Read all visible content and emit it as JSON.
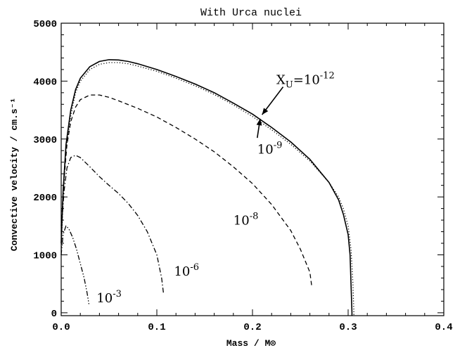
{
  "chart_data": {
    "type": "line",
    "title": "With Urca nuclei",
    "xlabel": "Mass / M⊙",
    "ylabel": "Convective velocity / cm.s⁻¹",
    "xlim": [
      0.0,
      0.4
    ],
    "ylim": [
      -50,
      5000
    ],
    "x_ticks": [
      0.0,
      0.1,
      0.2,
      0.3,
      0.4
    ],
    "x_tick_labels": [
      "0.0",
      "0.1",
      "0.2",
      "0.3",
      "0.4"
    ],
    "y_ticks": [
      0,
      1000,
      2000,
      3000,
      4000,
      5000
    ],
    "y_tick_labels": [
      "0",
      "1000",
      "2000",
      "3000",
      "4000",
      "5000"
    ],
    "grid": false,
    "legend": "none",
    "series": [
      {
        "style": "solid",
        "points": [
          [
            0.0,
            1200
          ],
          [
            0.002,
            2100
          ],
          [
            0.005,
            2900
          ],
          [
            0.01,
            3500
          ],
          [
            0.015,
            3850
          ],
          [
            0.02,
            4050
          ],
          [
            0.03,
            4250
          ],
          [
            0.04,
            4340
          ],
          [
            0.05,
            4370
          ],
          [
            0.06,
            4365
          ],
          [
            0.07,
            4340
          ],
          [
            0.08,
            4300
          ],
          [
            0.1,
            4200
          ],
          [
            0.12,
            4080
          ],
          [
            0.14,
            3950
          ],
          [
            0.16,
            3800
          ],
          [
            0.18,
            3620
          ],
          [
            0.2,
            3430
          ],
          [
            0.22,
            3200
          ],
          [
            0.24,
            2950
          ],
          [
            0.26,
            2650
          ],
          [
            0.28,
            2250
          ],
          [
            0.29,
            1950
          ],
          [
            0.295,
            1700
          ],
          [
            0.3,
            1350
          ],
          [
            0.302,
            1000
          ],
          [
            0.303,
            500
          ],
          [
            0.304,
            0
          ],
          [
            0.304,
            -50
          ]
        ]
      },
      {
        "style": "dotted",
        "points": [
          [
            0.0,
            1000
          ],
          [
            0.002,
            2000
          ],
          [
            0.005,
            2800
          ],
          [
            0.01,
            3400
          ],
          [
            0.015,
            3800
          ],
          [
            0.02,
            4000
          ],
          [
            0.03,
            4200
          ],
          [
            0.04,
            4290
          ],
          [
            0.05,
            4320
          ],
          [
            0.06,
            4320
          ],
          [
            0.07,
            4300
          ],
          [
            0.08,
            4260
          ],
          [
            0.1,
            4170
          ],
          [
            0.12,
            4050
          ],
          [
            0.14,
            3920
          ],
          [
            0.16,
            3770
          ],
          [
            0.18,
            3590
          ],
          [
            0.2,
            3390
          ],
          [
            0.22,
            3160
          ],
          [
            0.24,
            2910
          ],
          [
            0.26,
            2620
          ],
          [
            0.28,
            2250
          ],
          [
            0.29,
            2000
          ],
          [
            0.295,
            1800
          ],
          [
            0.3,
            1500
          ],
          [
            0.303,
            1100
          ],
          [
            0.305,
            500
          ],
          [
            0.306,
            0
          ],
          [
            0.306,
            -50
          ]
        ]
      },
      {
        "style": "dashed",
        "points": [
          [
            0.0,
            1500
          ],
          [
            0.003,
            2300
          ],
          [
            0.006,
            2900
          ],
          [
            0.01,
            3300
          ],
          [
            0.015,
            3550
          ],
          [
            0.02,
            3680
          ],
          [
            0.03,
            3760
          ],
          [
            0.04,
            3760
          ],
          [
            0.05,
            3720
          ],
          [
            0.06,
            3660
          ],
          [
            0.08,
            3530
          ],
          [
            0.1,
            3380
          ],
          [
            0.12,
            3200
          ],
          [
            0.14,
            3000
          ],
          [
            0.16,
            2780
          ],
          [
            0.18,
            2520
          ],
          [
            0.2,
            2230
          ],
          [
            0.22,
            1870
          ],
          [
            0.24,
            1420
          ],
          [
            0.25,
            1100
          ],
          [
            0.26,
            700
          ],
          [
            0.262,
            450
          ]
        ]
      },
      {
        "style": "dash-dot",
        "points": [
          [
            0.0,
            1400
          ],
          [
            0.003,
            2100
          ],
          [
            0.006,
            2500
          ],
          [
            0.01,
            2680
          ],
          [
            0.015,
            2720
          ],
          [
            0.02,
            2680
          ],
          [
            0.03,
            2520
          ],
          [
            0.04,
            2350
          ],
          [
            0.05,
            2200
          ],
          [
            0.06,
            2060
          ],
          [
            0.07,
            1890
          ],
          [
            0.08,
            1680
          ],
          [
            0.09,
            1400
          ],
          [
            0.1,
            1000
          ],
          [
            0.105,
            600
          ],
          [
            0.107,
            330
          ]
        ]
      },
      {
        "style": "dash-dot-dot",
        "points": [
          [
            0.0,
            1000
          ],
          [
            0.002,
            1350
          ],
          [
            0.005,
            1500
          ],
          [
            0.008,
            1450
          ],
          [
            0.012,
            1300
          ],
          [
            0.016,
            1100
          ],
          [
            0.02,
            850
          ],
          [
            0.024,
            600
          ],
          [
            0.027,
            350
          ],
          [
            0.029,
            150
          ]
        ]
      }
    ],
    "annotations": [
      {
        "base": "X",
        "sub": "U",
        "text": "=10",
        "sup": "-12",
        "x": 0.225,
        "y": 3950
      },
      {
        "base": "10",
        "sup": "-9",
        "x": 0.205,
        "y": 2750
      },
      {
        "base": "10",
        "sup": "-8",
        "x": 0.18,
        "y": 1520
      },
      {
        "base": "10",
        "sup": "-6",
        "x": 0.118,
        "y": 640
      },
      {
        "base": "10",
        "sup": "-3",
        "x": 0.037,
        "y": 180
      }
    ],
    "arrows": [
      {
        "from": [
          0.232,
          3900
        ],
        "to": [
          0.21,
          3420
        ]
      },
      {
        "from": [
          0.205,
          3020
        ],
        "to": [
          0.208,
          3350
        ]
      }
    ]
  }
}
